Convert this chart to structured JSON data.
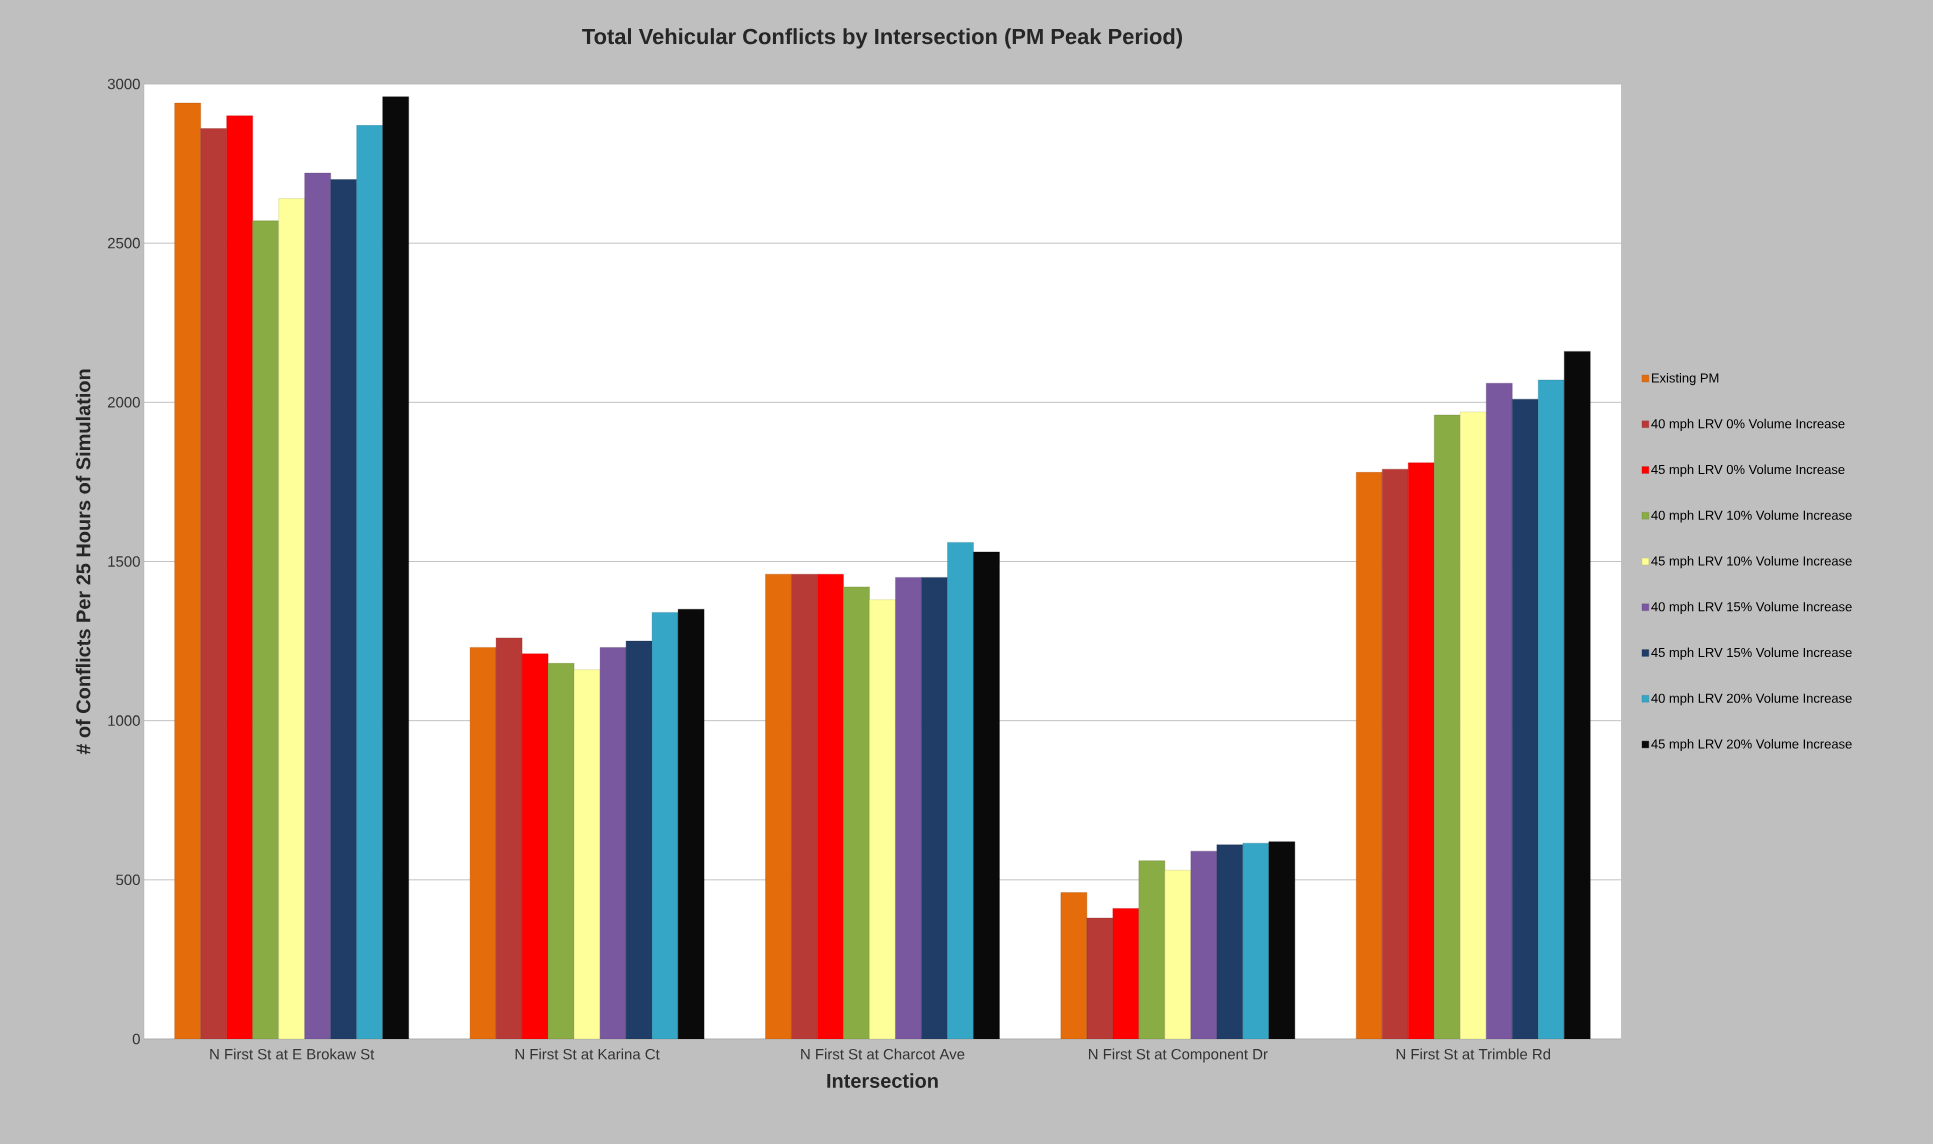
{
  "chart_data": {
    "type": "bar",
    "title": "Total Vehicular Conflicts by Intersection (PM Peak Period)",
    "xlabel": "Intersection",
    "ylabel": "# of Conflicts Per 25 Hours of Simulation",
    "categories": [
      "N First St at E Brokaw St",
      "N First St at Karina Ct",
      "N First St at Charcot Ave",
      "N First St at Component Dr",
      "N First St at Trimble Rd"
    ],
    "series": [
      {
        "name": "Existing PM",
        "color": "#e46c0a",
        "values": [
          2940,
          1230,
          1460,
          460,
          1780
        ]
      },
      {
        "name": "40 mph LRV 0% Volume Increase",
        "color": "#b83a36",
        "values": [
          2860,
          1260,
          1460,
          380,
          1790
        ]
      },
      {
        "name": "45 mph LRV 0% Volume Increase",
        "color": "#ff0000",
        "values": [
          2900,
          1210,
          1460,
          410,
          1810
        ]
      },
      {
        "name": "40 mph LRV 10% Volume Increase",
        "color": "#8aac44",
        "values": [
          2570,
          1180,
          1420,
          560,
          1960
        ]
      },
      {
        "name": "45 mph LRV 10% Volume Increase",
        "color": "#ffff99",
        "values": [
          2640,
          1160,
          1380,
          530,
          1970
        ]
      },
      {
        "name": "40 mph LRV 15% Volume Increase",
        "color": "#7a58a0",
        "values": [
          2720,
          1230,
          1450,
          590,
          2060
        ]
      },
      {
        "name": "45 mph LRV 15% Volume Increase",
        "color": "#1f3d66",
        "values": [
          2700,
          1250,
          1450,
          610,
          2010
        ]
      },
      {
        "name": "40 mph LRV 20% Volume Increase",
        "color": "#35a6c6",
        "values": [
          2870,
          1340,
          1560,
          615,
          2070
        ]
      },
      {
        "name": "45 mph LRV 20% Volume Increase",
        "color": "#0a0a0a",
        "values": [
          2960,
          1350,
          1530,
          620,
          2160
        ]
      }
    ],
    "ylim": [
      0,
      3000
    ],
    "yticks": [
      0,
      500,
      1000,
      1500,
      2000,
      2500,
      3000
    ],
    "grid": "y",
    "legend": "right"
  }
}
